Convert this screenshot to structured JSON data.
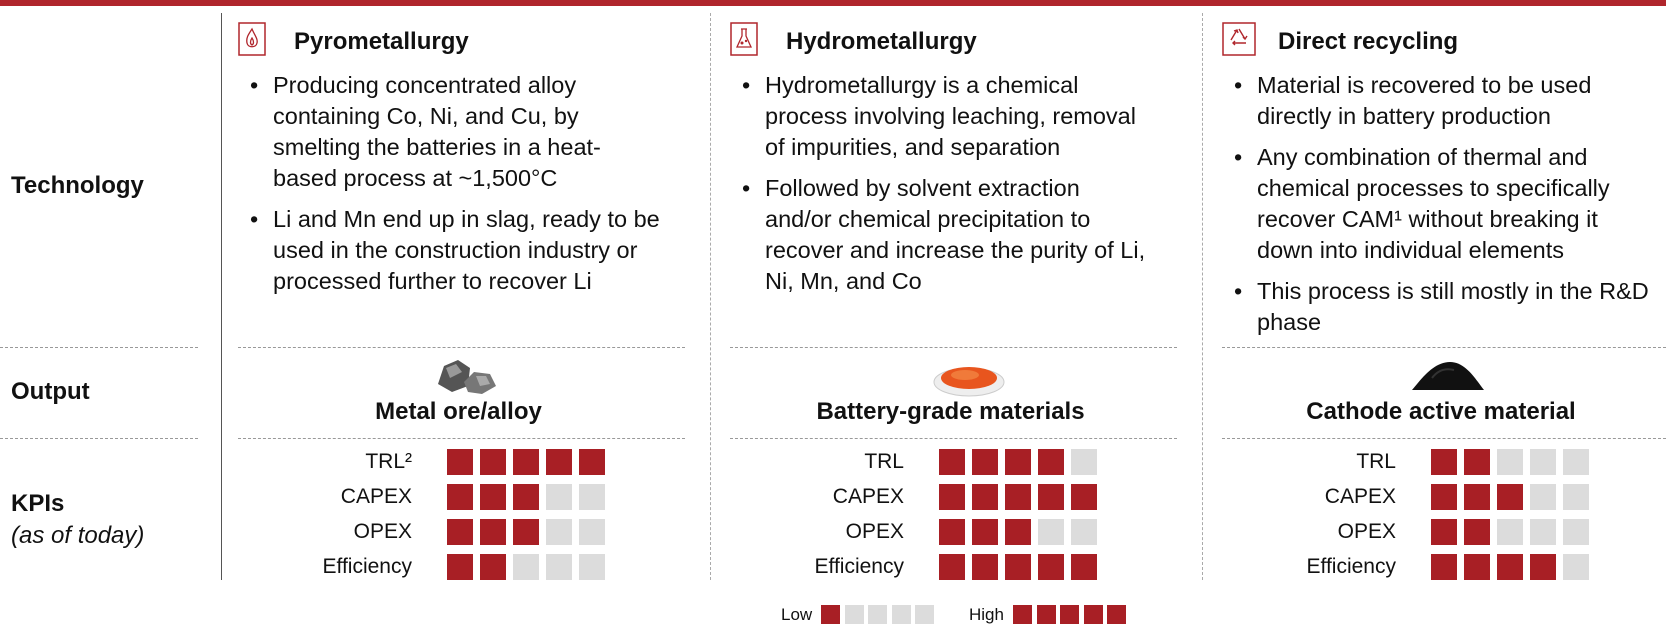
{
  "rows": [
    "Technology",
    "Output",
    "KPIs"
  ],
  "kpis_note": "(as of today)",
  "scale_max": 5,
  "columns": [
    {
      "title": "Pyrometallurgy",
      "bullets": [
        "Producing concentrated alloy containing Co, Ni, and Cu, by smelting the batteries in a heat-based process at ~1,500°C",
        "Li and Mn end up in slag, ready to be used in the construction industry or processed further to recover Li"
      ],
      "output": "Metal ore/alloy",
      "kpis": [
        {
          "name": "TRL²",
          "level": 5
        },
        {
          "name": "CAPEX",
          "level": 3
        },
        {
          "name": "OPEX",
          "level": 3
        },
        {
          "name": "Efficiency",
          "level": 2
        }
      ]
    },
    {
      "title": "Hydrometallurgy",
      "bullets": [
        "Hydrometallurgy is a chemical process involving leaching, removal of impurities, and separation",
        "Followed by solvent extraction and/or chemical precipitation to recover and increase the purity of Li, Ni, Mn, and Co"
      ],
      "output": "Battery-grade materials",
      "kpis": [
        {
          "name": "TRL",
          "level": 4
        },
        {
          "name": "CAPEX",
          "level": 5
        },
        {
          "name": "OPEX",
          "level": 3
        },
        {
          "name": "Efficiency",
          "level": 5
        }
      ]
    },
    {
      "title": "Direct recycling",
      "bullets": [
        "Material is recovered to be used directly in battery production",
        "Any combination of thermal and chemical processes to specifically recover CAM¹ without breaking it down into individual elements",
        "This process is still mostly in the R&D phase"
      ],
      "output": "Cathode active material",
      "kpis": [
        {
          "name": "TRL",
          "level": 2
        },
        {
          "name": "CAPEX",
          "level": 3
        },
        {
          "name": "OPEX",
          "level": 2
        },
        {
          "name": "Efficiency",
          "level": 4
        }
      ]
    }
  ],
  "legend": {
    "low": "Low",
    "low_level": 1,
    "high": "High",
    "high_level": 5
  }
}
